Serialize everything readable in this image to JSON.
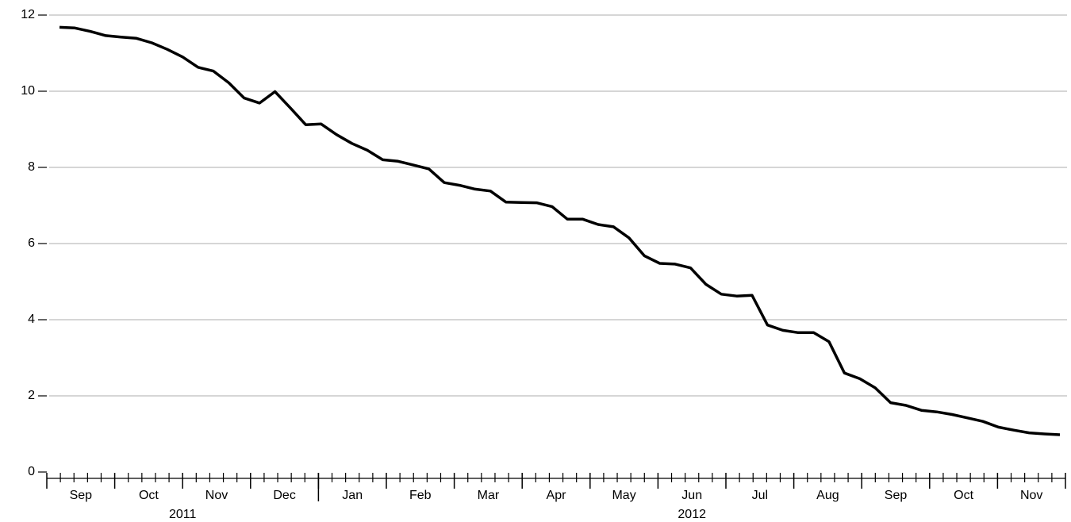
{
  "chart_data": {
    "type": "line",
    "color": "#000000",
    "grid": true,
    "values": [
      11.68,
      11.66,
      11.57,
      11.46,
      11.42,
      11.39,
      11.27,
      11.1,
      10.9,
      10.63,
      10.53,
      10.22,
      9.82,
      9.69,
      9.99,
      9.56,
      9.12,
      9.14,
      8.86,
      8.63,
      8.45,
      8.2,
      8.16,
      8.06,
      7.96,
      7.6,
      7.53,
      7.43,
      7.38,
      7.09,
      7.08,
      7.07,
      6.97,
      6.64,
      6.64,
      6.5,
      6.44,
      6.15,
      5.68,
      5.48,
      5.46,
      5.36,
      4.93,
      4.67,
      4.62,
      4.64,
      3.86,
      3.72,
      3.66,
      3.66,
      3.42,
      2.6,
      2.45,
      2.21,
      1.82,
      1.75,
      1.62,
      1.58,
      1.51,
      1.42,
      1.33,
      1.18,
      1.1,
      1.03,
      1.0,
      0.98
    ],
    "months": [
      "Sep",
      "Oct",
      "Nov",
      "Dec",
      "Jan",
      "Feb",
      "Mar",
      "Apr",
      "May",
      "Jun",
      "Jul",
      "Aug",
      "Sep",
      "Oct",
      "Nov"
    ],
    "years": [
      "2011",
      "2012"
    ],
    "ylim": [
      0,
      12
    ],
    "yticks": [
      0,
      2,
      4,
      6,
      8,
      10,
      12
    ]
  }
}
